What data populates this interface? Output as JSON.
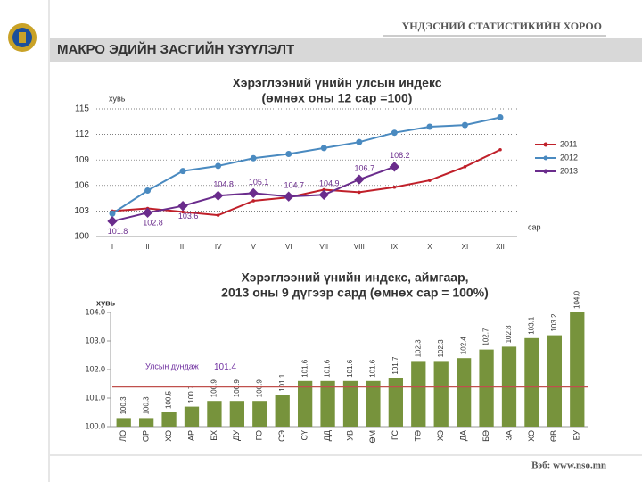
{
  "header": {
    "org": "ҮНДЭСНИЙ СТАТИСТИКИЙН ХОРОО",
    "banner": "МАКРО ЭДИЙН ЗАСГИЙН ҮЗҮҮЛЭЛТ",
    "footer": "Вэб: www.nso.mn"
  },
  "chart_data": [
    {
      "type": "line",
      "title": [
        "Хэрэглээний үнийн улсын индекс",
        "(өмнөх оны 12 сар =100)"
      ],
      "y_label": "хувь",
      "x_label": "сар",
      "categories": [
        "I",
        "II",
        "III",
        "IV",
        "V",
        "VI",
        "VII",
        "VIII",
        "IX",
        "X",
        "XI",
        "XII"
      ],
      "series": [
        {
          "name": "2011",
          "color": "#c0202a",
          "values": [
            103.0,
            103.3,
            102.9,
            102.5,
            104.2,
            104.6,
            105.5,
            105.2,
            105.8,
            106.6,
            108.2,
            110.2
          ]
        },
        {
          "name": "2012",
          "color": "#4a8ac0",
          "values": [
            102.7,
            105.4,
            107.7,
            108.3,
            109.2,
            109.7,
            110.4,
            111.1,
            112.2,
            112.9,
            113.1,
            114.0
          ]
        },
        {
          "name": "2013",
          "color": "#6a2c8c",
          "values": [
            101.8,
            102.8,
            103.6,
            104.8,
            105.1,
            104.7,
            104.9,
            106.7,
            108.2,
            null,
            null,
            null
          ]
        }
      ],
      "ylim": [
        100,
        115
      ],
      "yticks": [
        100,
        103,
        106,
        109,
        112,
        115
      ],
      "grid": true,
      "legend": "right"
    },
    {
      "type": "bar",
      "title": [
        "Хэрэглээний үнийн индекс, аймгаар,",
        "2013 оны 9 дүгээр сард (өмнөх сар = 100%)"
      ],
      "y_label": "хувь",
      "categories": [
        "ЛО",
        "ОР",
        "ХО",
        "АР",
        "БХ",
        "ДУ",
        "ГО",
        "СЭ",
        "СҮ",
        "ДД",
        "УВ",
        "ӨМ",
        "ГС",
        "ТӨ",
        "ХЭ",
        "ДА",
        "БӨ",
        "ЗА",
        "ХО",
        "ӨВ",
        "БУ"
      ],
      "values": [
        100.3,
        100.3,
        100.5,
        100.7,
        100.9,
        100.9,
        100.9,
        101.1,
        101.6,
        101.6,
        101.6,
        101.6,
        101.7,
        102.3,
        102.3,
        102.4,
        102.7,
        102.8,
        103.1,
        103.2,
        104.0
      ],
      "value_labels": [
        "100.3",
        "100.3",
        "100.5",
        "100.7",
        "100.9",
        "100.9",
        "100.9",
        "101.1",
        "101.6",
        "101.6",
        "101.6",
        "101.6",
        "101.7",
        "102.3",
        "102.3",
        "102.4",
        "102.7",
        "102.8",
        "103.1",
        "103.2",
        "104.0"
      ],
      "color": "#77933c",
      "average": {
        "label": "Улсын дундаж",
        "value": 101.4,
        "color": "#c0504d"
      },
      "ylim": [
        100,
        104
      ],
      "yticks": [
        {
          "value": 100,
          "label": "100.0"
        },
        {
          "value": 101,
          "label": "101.0"
        },
        {
          "value": 102,
          "label": "102.0"
        },
        {
          "value": 103,
          "label": "103.0"
        },
        {
          "value": 104,
          "label": "104.0"
        }
      ]
    }
  ]
}
